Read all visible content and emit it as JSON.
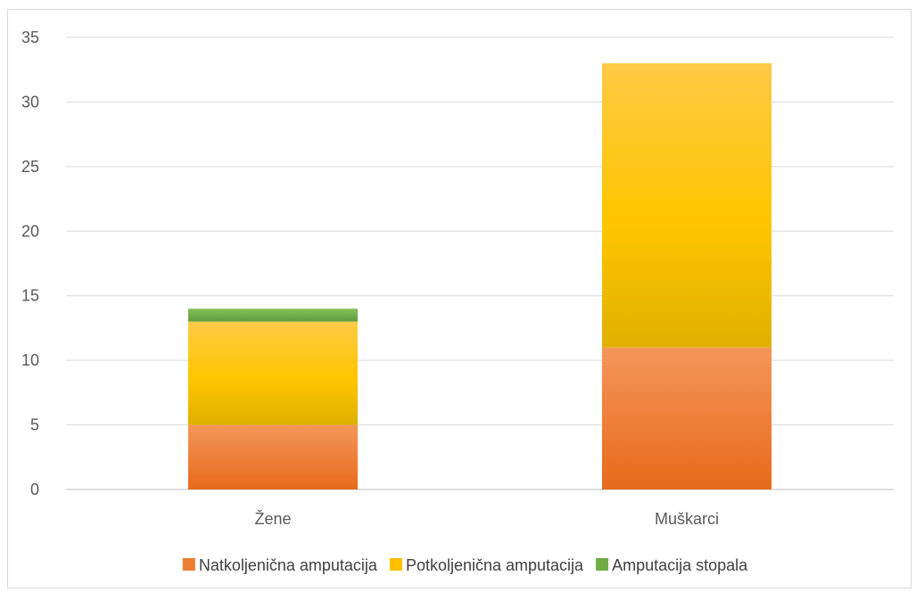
{
  "chart_data": {
    "type": "bar",
    "stacked": true,
    "categories": [
      "Žene",
      "Muškarci"
    ],
    "series": [
      {
        "name": "Natkoljenična amputacija",
        "values": [
          5,
          11
        ],
        "color": "#ed7d31"
      },
      {
        "name": "Potkoljenična amputacija",
        "values": [
          8,
          22
        ],
        "color": "#ffc000"
      },
      {
        "name": "Amputacija stopala",
        "values": [
          1,
          0
        ],
        "color": "#70ad47"
      }
    ],
    "ylim": [
      0,
      35
    ],
    "yticks": [
      "0",
      "5",
      "10",
      "15",
      "20",
      "25",
      "30",
      "35"
    ],
    "grid": true,
    "legend_position": "bottom"
  }
}
